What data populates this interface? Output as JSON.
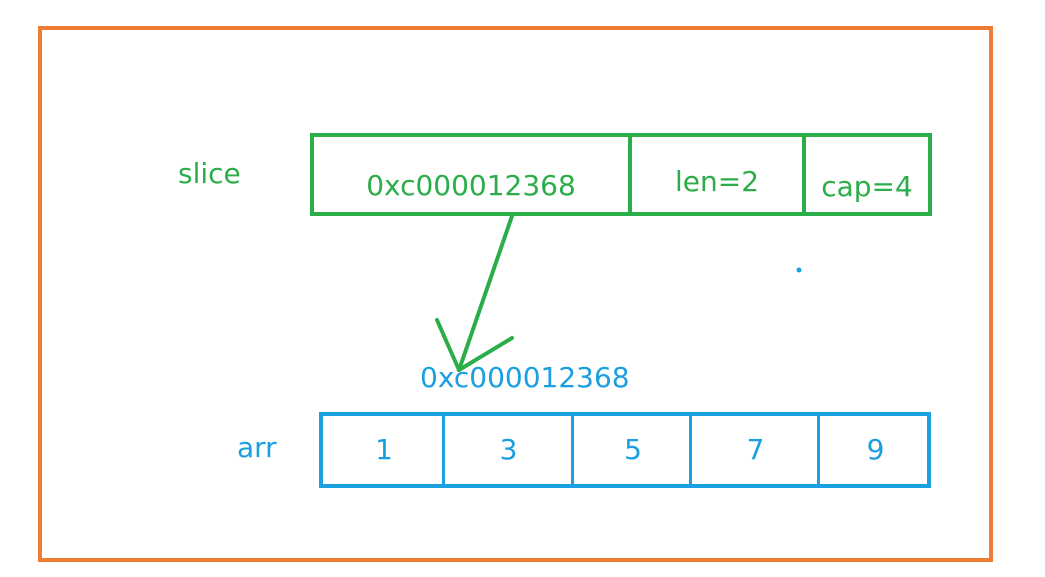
{
  "slice": {
    "label": "slice",
    "pointer": "0xc000012368",
    "len": "len=2",
    "cap": "cap=4"
  },
  "arr": {
    "label": "arr",
    "address": "0xc000012368",
    "values": [
      "1",
      "3",
      "5",
      "7",
      "9"
    ]
  },
  "colors": {
    "frame": "#ED7D31",
    "slice": "#2BAE4A",
    "arr": "#1A9FE0"
  }
}
